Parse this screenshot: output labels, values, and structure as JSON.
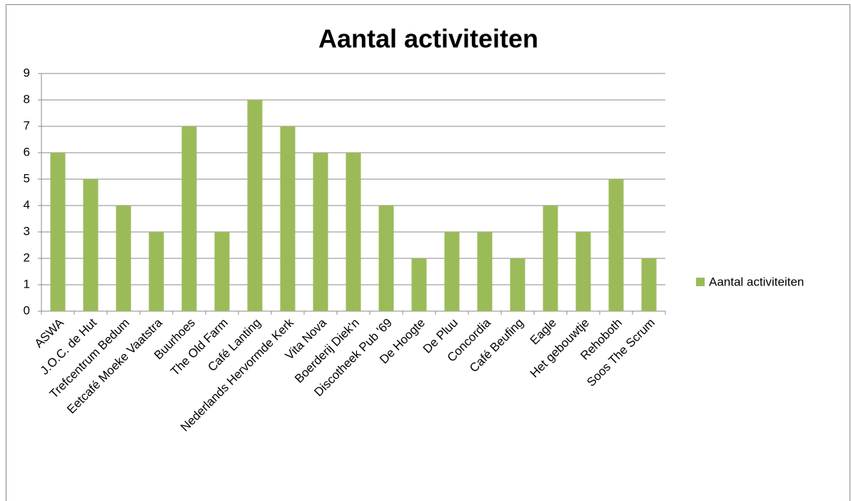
{
  "chart_data": {
    "type": "bar",
    "title": "Aantal activiteiten",
    "categories": [
      "ASWA",
      "J.O.C. de Hut",
      "Trefcentrum Bedum",
      "Eetcafé Moeke Vaatstra",
      "Buurhoes",
      "The Old Farm",
      "Café Lanting",
      "Nederlands Hervormde Kerk",
      "Vita Nova",
      "Boerderij Diek'n",
      "Discotheek Pub '69",
      "De Hoogte",
      "De Pluu",
      "Concordia",
      "Café Beufing",
      "Eagle",
      "Het gebouwtje",
      "Rehoboth",
      "Soos The Scrum"
    ],
    "series": [
      {
        "name": "Aantal activiteiten",
        "color": "#9bbb59",
        "values": [
          6,
          5,
          4,
          3,
          7,
          3,
          8,
          7,
          6,
          6,
          4,
          2,
          3,
          3,
          2,
          4,
          3,
          5,
          2
        ]
      }
    ],
    "ylim": [
      0,
      9
    ],
    "yticks": [
      0,
      1,
      2,
      3,
      4,
      5,
      6,
      7,
      8,
      9
    ],
    "grid": true,
    "legend": "right"
  }
}
